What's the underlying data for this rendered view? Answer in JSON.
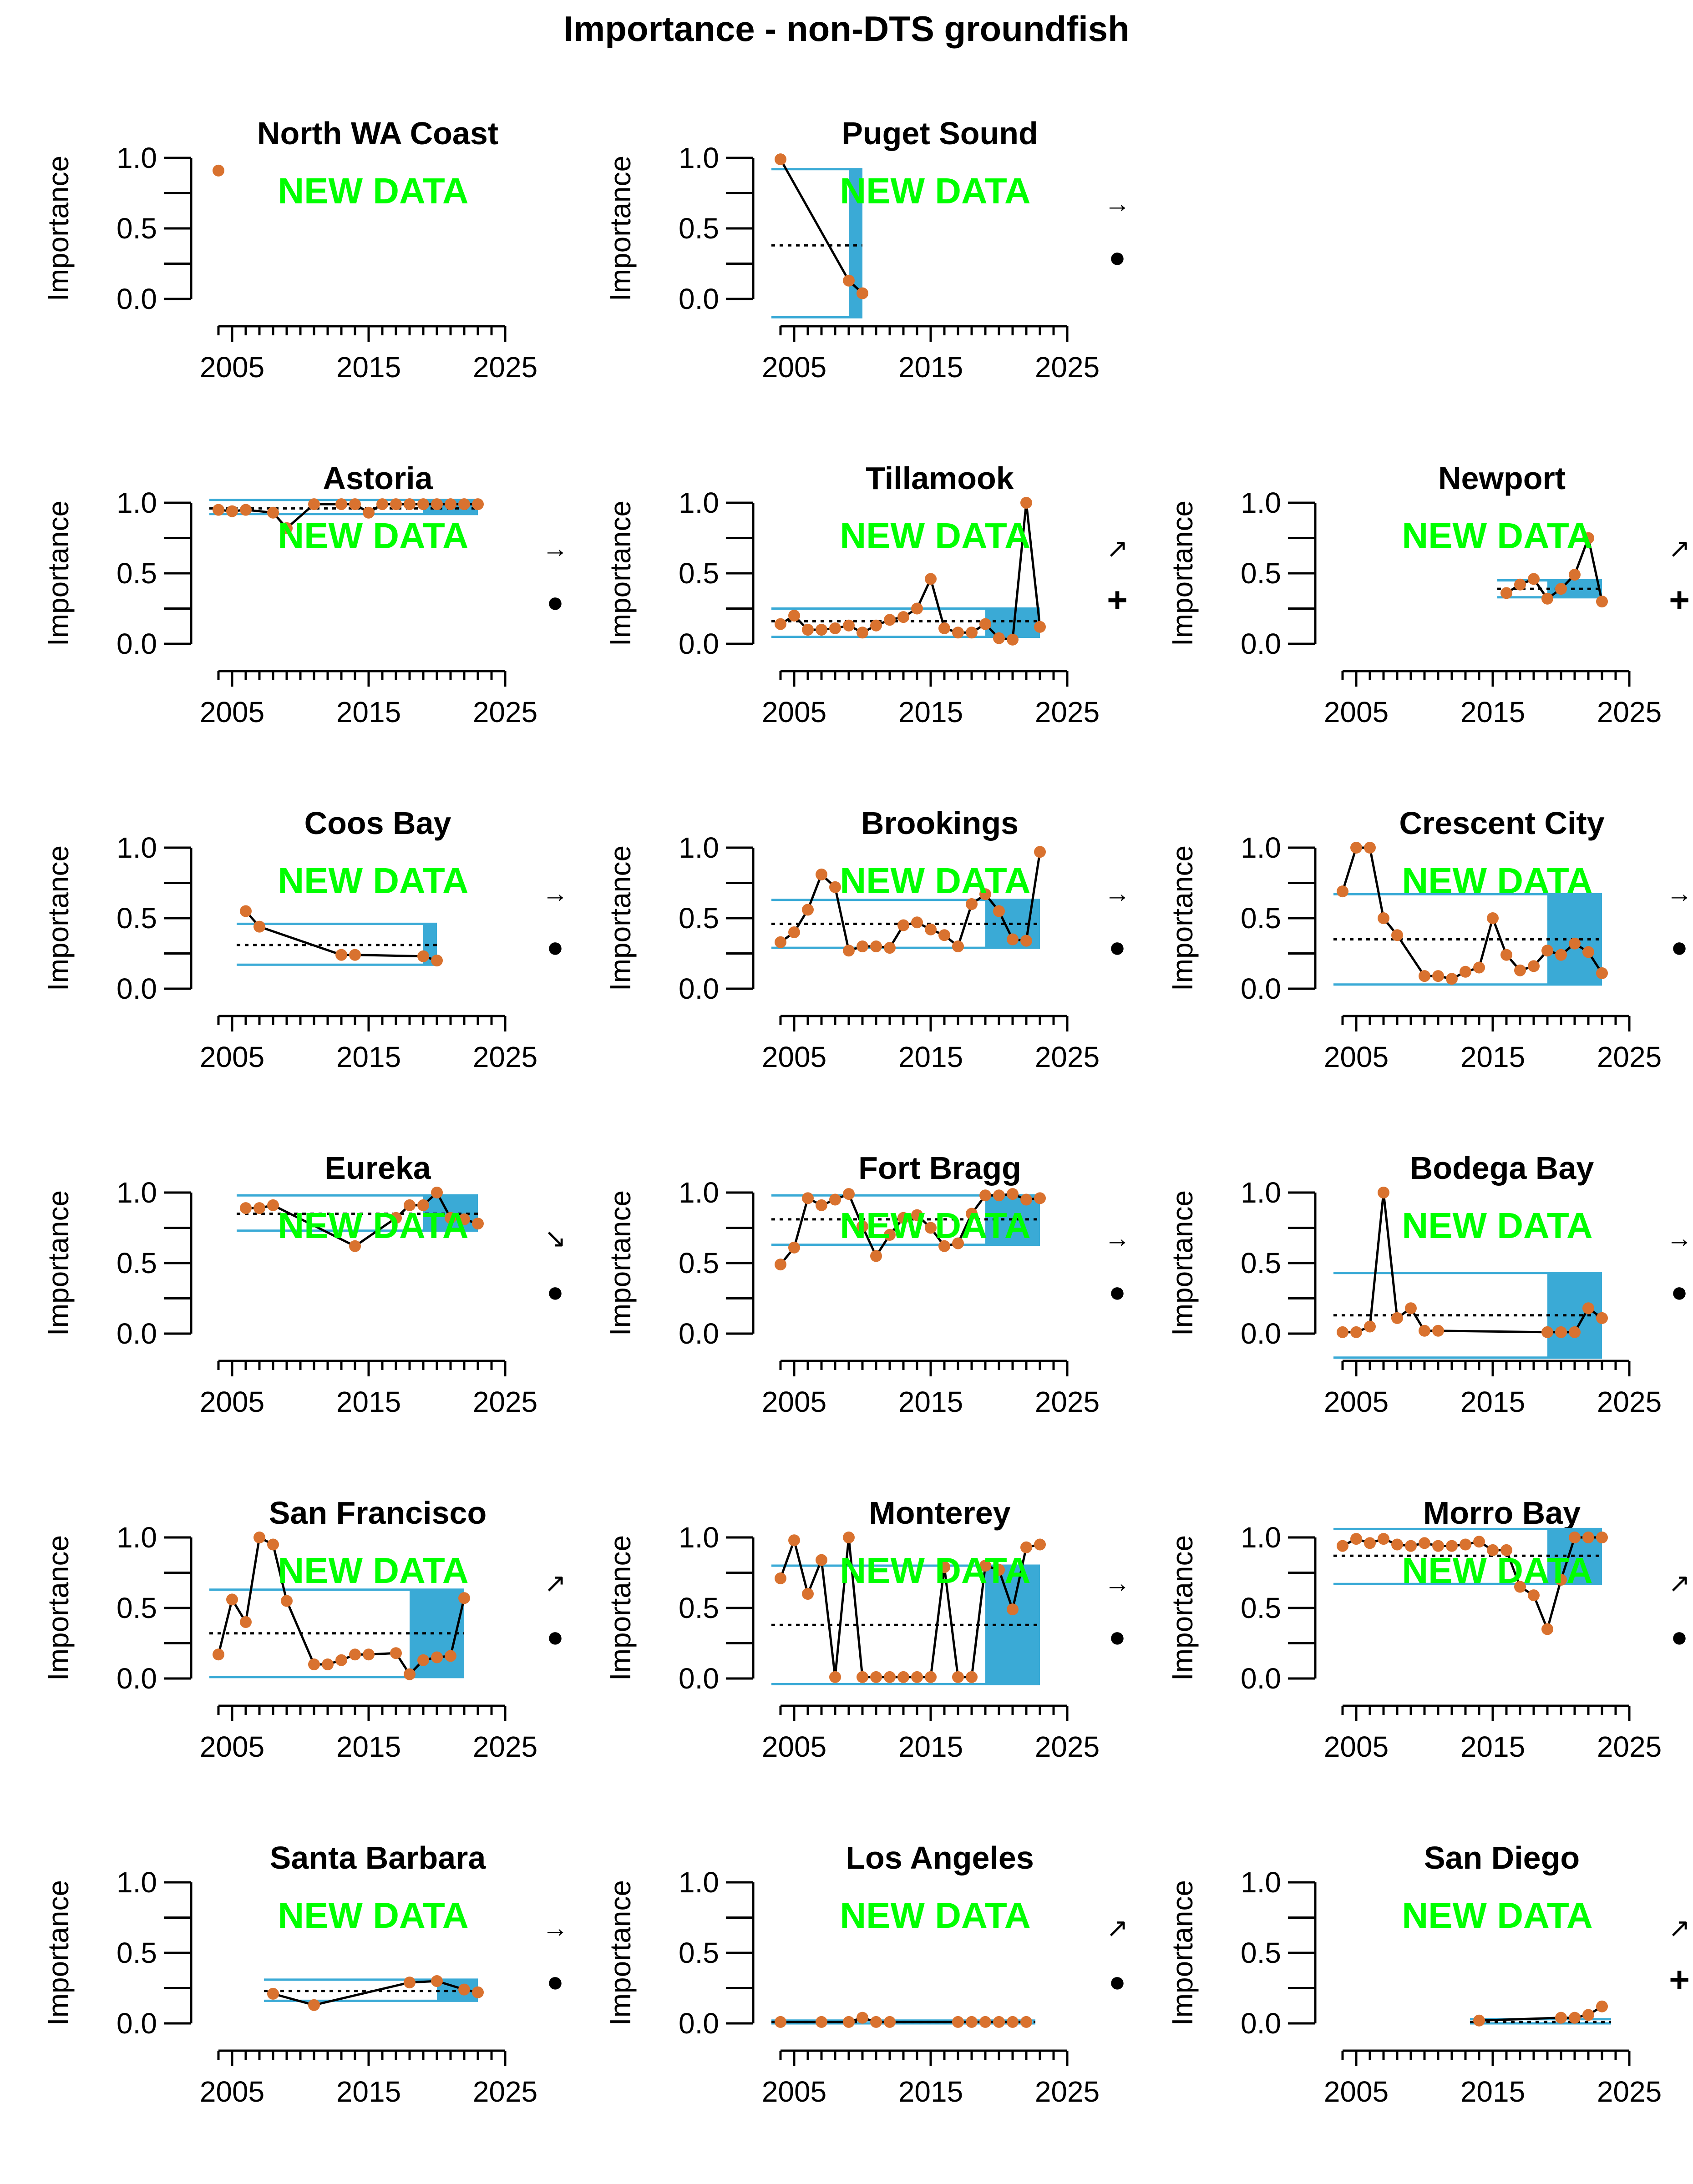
{
  "page": {
    "title": "Importance - non-DTS groundfish",
    "new_data_label": "NEW DATA"
  },
  "colors": {
    "points": "#D9722F",
    "line": "#000000",
    "band": "#3AAAD6",
    "new_data": "#00FF00",
    "axis": "#000000"
  },
  "chart_data": [
    {
      "type": "line",
      "title": "North WA Coast",
      "ylabel": "Importance",
      "xlim": [
        2003,
        2025
      ],
      "ylim": [
        0,
        1
      ],
      "xticks": [
        2005,
        2015,
        2025
      ],
      "yticks": [
        0.0,
        0.5,
        1.0
      ],
      "x": [
        2004
      ],
      "y": [
        0.91
      ],
      "mean": null,
      "sd_upper": null,
      "sd_lower": null,
      "recent_window": null,
      "trend_symbol": "",
      "mean_symbol": ""
    },
    {
      "type": "line",
      "title": "Puget Sound",
      "ylabel": "Importance",
      "xlim": [
        2003,
        2025
      ],
      "ylim": [
        0,
        1
      ],
      "xticks": [
        2005,
        2015,
        2025
      ],
      "yticks": [
        0.0,
        0.5,
        1.0
      ],
      "x": [
        2004,
        2009,
        2010
      ],
      "y": [
        0.99,
        0.13,
        0.04
      ],
      "mean": 0.38,
      "sd_upper": 0.92,
      "sd_lower": -0.13,
      "recent_window": [
        2009,
        2010
      ],
      "trend_symbol": "→",
      "mean_symbol": "●"
    },
    null,
    {
      "type": "line",
      "title": "Astoria",
      "ylabel": "Importance",
      "xlim": [
        2003,
        2025
      ],
      "ylim": [
        0,
        1
      ],
      "xticks": [
        2005,
        2015,
        2025
      ],
      "yticks": [
        0.0,
        0.5,
        1.0
      ],
      "x": [
        2004,
        2005,
        2006,
        2008,
        2009,
        2011,
        2013,
        2014,
        2015,
        2016,
        2017,
        2018,
        2019,
        2020,
        2021,
        2022,
        2023
      ],
      "y": [
        0.95,
        0.94,
        0.95,
        0.93,
        0.82,
        0.99,
        0.99,
        0.99,
        0.93,
        0.99,
        0.99,
        0.99,
        0.99,
        0.99,
        0.99,
        0.99,
        0.99
      ],
      "mean": 0.96,
      "sd_upper": 1.02,
      "sd_lower": 0.92,
      "recent_window": [
        2019,
        2023
      ],
      "trend_symbol": "→",
      "mean_symbol": "●"
    },
    {
      "type": "line",
      "title": "Tillamook",
      "ylabel": "Importance",
      "xlim": [
        2003,
        2025
      ],
      "ylim": [
        0,
        1
      ],
      "xticks": [
        2005,
        2015,
        2025
      ],
      "yticks": [
        0.0,
        0.5,
        1.0
      ],
      "x": [
        2004,
        2005,
        2006,
        2007,
        2008,
        2009,
        2010,
        2011,
        2012,
        2013,
        2014,
        2015,
        2016,
        2017,
        2018,
        2019,
        2020,
        2021,
        2022,
        2023
      ],
      "y": [
        0.14,
        0.2,
        0.1,
        0.1,
        0.11,
        0.13,
        0.08,
        0.13,
        0.17,
        0.19,
        0.25,
        0.46,
        0.11,
        0.08,
        0.08,
        0.14,
        0.04,
        0.03,
        1.0,
        0.12
      ],
      "mean": 0.16,
      "sd_upper": 0.25,
      "sd_lower": 0.05,
      "recent_window": [
        2019,
        2023
      ],
      "trend_symbol": "↗",
      "mean_symbol": "+"
    },
    {
      "type": "line",
      "title": "Newport",
      "ylabel": "Importance",
      "xlim": [
        2003,
        2025
      ],
      "ylim": [
        0,
        1
      ],
      "xticks": [
        2005,
        2015,
        2025
      ],
      "yticks": [
        0.0,
        0.5,
        1.0
      ],
      "x": [
        2016,
        2017,
        2018,
        2019,
        2020,
        2021,
        2022,
        2023
      ],
      "y": [
        0.36,
        0.42,
        0.46,
        0.32,
        0.39,
        0.49,
        0.75,
        0.3
      ],
      "mean": 0.39,
      "sd_upper": 0.45,
      "sd_lower": 0.33,
      "recent_window": [
        2019,
        2023
      ],
      "trend_symbol": "↗",
      "mean_symbol": "+"
    },
    {
      "type": "line",
      "title": "Coos Bay",
      "ylabel": "Importance",
      "xlim": [
        2003,
        2025
      ],
      "ylim": [
        0,
        1
      ],
      "xticks": [
        2005,
        2015,
        2025
      ],
      "yticks": [
        0.0,
        0.5,
        1.0
      ],
      "x": [
        2006,
        2007,
        2013,
        2014,
        2019,
        2020
      ],
      "y": [
        0.55,
        0.44,
        0.24,
        0.24,
        0.23,
        0.2
      ],
      "mean": 0.31,
      "sd_upper": 0.46,
      "sd_lower": 0.17,
      "recent_window": [
        2019,
        2020
      ],
      "trend_symbol": "→",
      "mean_symbol": "●"
    },
    {
      "type": "line",
      "title": "Brookings",
      "ylabel": "Importance",
      "xlim": [
        2003,
        2025
      ],
      "ylim": [
        0,
        1
      ],
      "xticks": [
        2005,
        2015,
        2025
      ],
      "yticks": [
        0.0,
        0.5,
        1.0
      ],
      "x": [
        2004,
        2005,
        2006,
        2007,
        2008,
        2009,
        2010,
        2011,
        2012,
        2013,
        2014,
        2015,
        2016,
        2017,
        2018,
        2019,
        2020,
        2021,
        2022,
        2023
      ],
      "y": [
        0.33,
        0.4,
        0.56,
        0.81,
        0.72,
        0.27,
        0.3,
        0.3,
        0.29,
        0.45,
        0.47,
        0.42,
        0.38,
        0.3,
        0.6,
        0.67,
        0.55,
        0.35,
        0.34,
        0.97
      ],
      "mean": 0.46,
      "sd_upper": 0.63,
      "sd_lower": 0.29,
      "recent_window": [
        2019,
        2023
      ],
      "trend_symbol": "→",
      "mean_symbol": "●"
    },
    {
      "type": "line",
      "title": "Crescent City",
      "ylabel": "Importance",
      "xlim": [
        2003,
        2025
      ],
      "ylim": [
        0,
        1
      ],
      "xticks": [
        2005,
        2015,
        2025
      ],
      "yticks": [
        0.0,
        0.5,
        1.0
      ],
      "x": [
        2004,
        2005,
        2006,
        2007,
        2008,
        2010,
        2011,
        2012,
        2013,
        2014,
        2015,
        2016,
        2017,
        2018,
        2019,
        2020,
        2021,
        2022,
        2023
      ],
      "y": [
        0.69,
        1.0,
        1.0,
        0.5,
        0.38,
        0.09,
        0.09,
        0.07,
        0.12,
        0.15,
        0.5,
        0.24,
        0.13,
        0.16,
        0.27,
        0.24,
        0.32,
        0.26,
        0.11
      ],
      "mean": 0.35,
      "sd_upper": 0.67,
      "sd_lower": 0.03,
      "recent_window": [
        2019,
        2023
      ],
      "trend_symbol": "→",
      "mean_symbol": "●"
    },
    {
      "type": "line",
      "title": "Eureka",
      "ylabel": "Importance",
      "xlim": [
        2003,
        2025
      ],
      "ylim": [
        0,
        1
      ],
      "xticks": [
        2005,
        2015,
        2025
      ],
      "yticks": [
        0.0,
        0.5,
        1.0
      ],
      "x": [
        2006,
        2007,
        2008,
        2014,
        2017,
        2018,
        2019,
        2020,
        2021,
        2022,
        2023
      ],
      "y": [
        0.89,
        0.89,
        0.91,
        0.62,
        0.82,
        0.91,
        0.91,
        1.0,
        0.82,
        0.81,
        0.78
      ],
      "mean": 0.85,
      "sd_upper": 0.98,
      "sd_lower": 0.73,
      "recent_window": [
        2019,
        2023
      ],
      "trend_symbol": "↘",
      "mean_symbol": "●"
    },
    {
      "type": "line",
      "title": "Fort Bragg",
      "ylabel": "Importance",
      "xlim": [
        2003,
        2025
      ],
      "ylim": [
        0,
        1
      ],
      "xticks": [
        2005,
        2015,
        2025
      ],
      "yticks": [
        0.0,
        0.5,
        1.0
      ],
      "x": [
        2004,
        2005,
        2006,
        2007,
        2008,
        2009,
        2010,
        2011,
        2012,
        2013,
        2014,
        2015,
        2016,
        2017,
        2018,
        2019,
        2020,
        2021,
        2022,
        2023
      ],
      "y": [
        0.49,
        0.61,
        0.96,
        0.91,
        0.95,
        0.99,
        0.76,
        0.55,
        0.7,
        0.82,
        0.84,
        0.75,
        0.62,
        0.64,
        0.85,
        0.98,
        0.98,
        0.99,
        0.95,
        0.96
      ],
      "mean": 0.81,
      "sd_upper": 0.98,
      "sd_lower": 0.63,
      "recent_window": [
        2019,
        2023
      ],
      "trend_symbol": "→",
      "mean_symbol": "●"
    },
    {
      "type": "line",
      "title": "Bodega Bay",
      "ylabel": "Importance",
      "xlim": [
        2003,
        2025
      ],
      "ylim": [
        0,
        1
      ],
      "xticks": [
        2005,
        2015,
        2025
      ],
      "yticks": [
        0.0,
        0.5,
        1.0
      ],
      "x": [
        2004,
        2005,
        2006,
        2007,
        2008,
        2009,
        2010,
        2011,
        2019,
        2020,
        2021,
        2022,
        2023
      ],
      "y": [
        0.01,
        0.01,
        0.05,
        1.0,
        0.11,
        0.18,
        0.02,
        0.02,
        0.01,
        0.01,
        0.01,
        0.18,
        0.11
      ],
      "mean": 0.13,
      "sd_upper": 0.43,
      "sd_lower": -0.17,
      "recent_window": [
        2019,
        2023
      ],
      "trend_symbol": "→",
      "mean_symbol": "●"
    },
    {
      "type": "line",
      "title": "San Francisco",
      "ylabel": "Importance",
      "xlim": [
        2003,
        2025
      ],
      "ylim": [
        0,
        1
      ],
      "xticks": [
        2005,
        2015,
        2025
      ],
      "yticks": [
        0.0,
        0.5,
        1.0
      ],
      "x": [
        2004,
        2005,
        2006,
        2007,
        2008,
        2009,
        2011,
        2012,
        2013,
        2014,
        2015,
        2017,
        2018,
        2019,
        2020,
        2021,
        2022
      ],
      "y": [
        0.17,
        0.56,
        0.4,
        1.0,
        0.95,
        0.55,
        0.1,
        0.1,
        0.13,
        0.17,
        0.17,
        0.18,
        0.03,
        0.13,
        0.15,
        0.16,
        0.57
      ],
      "mean": 0.32,
      "sd_upper": 0.63,
      "sd_lower": 0.01,
      "recent_window": [
        2018,
        2022
      ],
      "trend_symbol": "↗",
      "mean_symbol": "●"
    },
    {
      "type": "line",
      "title": "Monterey",
      "ylabel": "Importance",
      "xlim": [
        2003,
        2025
      ],
      "ylim": [
        0,
        1
      ],
      "xticks": [
        2005,
        2015,
        2025
      ],
      "yticks": [
        0.0,
        0.5,
        1.0
      ],
      "x": [
        2004,
        2005,
        2006,
        2007,
        2008,
        2009,
        2010,
        2011,
        2012,
        2013,
        2014,
        2015,
        2016,
        2017,
        2018,
        2019,
        2020,
        2021,
        2022,
        2023
      ],
      "y": [
        0.71,
        0.98,
        0.6,
        0.84,
        0.01,
        1.0,
        0.01,
        0.01,
        0.01,
        0.01,
        0.01,
        0.01,
        0.79,
        0.01,
        0.01,
        0.8,
        0.77,
        0.49,
        0.93,
        0.95
      ],
      "mean": 0.38,
      "sd_upper": 0.8,
      "sd_lower": -0.04,
      "recent_window": [
        2019,
        2023
      ],
      "trend_symbol": "→",
      "mean_symbol": "●"
    },
    {
      "type": "line",
      "title": "Morro Bay",
      "ylabel": "Importance",
      "xlim": [
        2003,
        2025
      ],
      "ylim": [
        0,
        1
      ],
      "xticks": [
        2005,
        2015,
        2025
      ],
      "yticks": [
        0.0,
        0.5,
        1.0
      ],
      "x": [
        2004,
        2005,
        2006,
        2007,
        2008,
        2009,
        2010,
        2011,
        2012,
        2013,
        2014,
        2015,
        2016,
        2017,
        2018,
        2019,
        2020,
        2021,
        2022,
        2023
      ],
      "y": [
        0.94,
        0.99,
        0.96,
        0.99,
        0.95,
        0.94,
        0.96,
        0.94,
        0.94,
        0.95,
        0.97,
        0.91,
        0.91,
        0.65,
        0.59,
        0.35,
        0.7,
        1.0,
        1.0,
        1.0
      ],
      "mean": 0.87,
      "sd_upper": 1.06,
      "sd_lower": 0.67,
      "recent_window": [
        2019,
        2023
      ],
      "trend_symbol": "↗",
      "mean_symbol": "●"
    },
    {
      "type": "line",
      "title": "Santa Barbara",
      "ylabel": "Importance",
      "xlim": [
        2003,
        2025
      ],
      "ylim": [
        0,
        1
      ],
      "xticks": [
        2005,
        2015,
        2025
      ],
      "yticks": [
        0.0,
        0.5,
        1.0
      ],
      "x": [
        2008,
        2011,
        2018,
        2020,
        2022,
        2023
      ],
      "y": [
        0.21,
        0.13,
        0.29,
        0.3,
        0.24,
        0.22
      ],
      "mean": 0.23,
      "sd_upper": 0.31,
      "sd_lower": 0.16,
      "recent_window": [
        2020,
        2023
      ],
      "trend_symbol": "→",
      "mean_symbol": "●"
    },
    {
      "type": "line",
      "title": "Los Angeles",
      "ylabel": "Importance",
      "xlim": [
        2003,
        2025
      ],
      "ylim": [
        0,
        1
      ],
      "xticks": [
        2005,
        2015,
        2025
      ],
      "yticks": [
        0.0,
        0.5,
        1.0
      ],
      "x": [
        2004,
        2007,
        2009,
        2010,
        2011,
        2012,
        2017,
        2018,
        2019,
        2020,
        2021,
        2022
      ],
      "y": [
        0.01,
        0.01,
        0.01,
        0.04,
        0.01,
        0.01,
        0.01,
        0.01,
        0.01,
        0.01,
        0.01,
        0.01
      ],
      "mean": 0.01,
      "sd_upper": 0.02,
      "sd_lower": 0.0,
      "recent_window": null,
      "trend_symbol": "↗",
      "mean_symbol": "●"
    },
    {
      "type": "line",
      "title": "San Diego",
      "ylabel": "Importance",
      "xlim": [
        2003,
        2025
      ],
      "ylim": [
        0,
        1
      ],
      "xticks": [
        2005,
        2015,
        2025
      ],
      "yticks": [
        0.0,
        0.5,
        1.0
      ],
      "x": [
        2014,
        2020,
        2021,
        2022,
        2023
      ],
      "y": [
        0.02,
        0.04,
        0.04,
        0.06,
        0.12
      ],
      "mean": 0.01,
      "sd_upper": 0.03,
      "sd_lower": 0.0,
      "recent_window": null,
      "trend_symbol": "↗",
      "mean_symbol": "+"
    }
  ]
}
